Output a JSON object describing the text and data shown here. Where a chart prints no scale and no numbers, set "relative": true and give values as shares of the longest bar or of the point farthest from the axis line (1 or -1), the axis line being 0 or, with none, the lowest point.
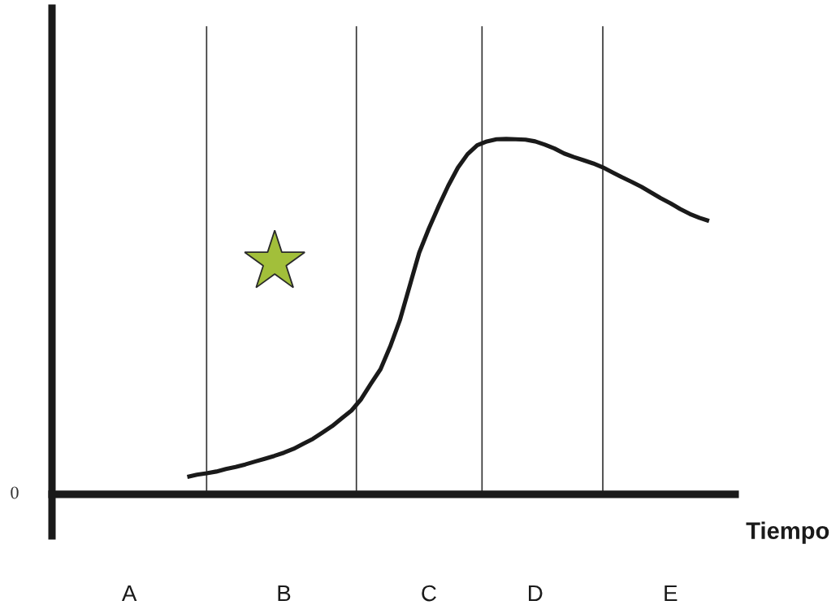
{
  "chart_data": {
    "type": "line",
    "relative": true,
    "xlabel": "Tiempo",
    "tick_labels": "x",
    "line_style": "solid",
    "categories": [
      null,
      null,
      null,
      null,
      null,
      null,
      null,
      null,
      "A",
      null,
      null,
      null,
      null,
      null,
      null,
      null,
      null,
      null,
      null,
      null,
      null,
      null,
      null,
      null,
      "B",
      null,
      null,
      null,
      null,
      null,
      null,
      null,
      null,
      null,
      null,
      null,
      null,
      null,
      null,
      "C",
      null,
      null,
      null,
      null,
      null,
      null,
      null,
      null,
      null,
      null,
      "D",
      null,
      null,
      null,
      null,
      null,
      null,
      null,
      null,
      null,
      null,
      null,
      null,
      null,
      "E",
      null,
      null,
      null,
      null,
      null,
      null
    ],
    "series": [
      {
        "color": "#1a1a1a",
        "values": [
          null,
          null,
          null,
          null,
          null,
          null,
          null,
          null,
          null,
          null,
          null,
          null,
          null,
          null,
          0.049,
          0.055,
          0.059,
          0.064,
          0.071,
          0.077,
          0.084,
          0.092,
          0.1,
          0.108,
          0.117,
          0.128,
          0.142,
          0.156,
          0.174,
          0.192,
          0.214,
          0.236,
          0.268,
          0.311,
          0.352,
          0.416,
          0.49,
          0.585,
          0.68,
          0.748,
          0.81,
          0.868,
          0.919,
          0.957,
          0.982,
          0.993,
          0.999,
          1.0,
          0.999,
          0.998,
          0.993,
          0.984,
          0.973,
          0.959,
          0.949,
          0.94,
          0.931,
          0.92,
          0.906,
          0.892,
          0.879,
          0.865,
          0.849,
          0.833,
          0.819,
          0.803,
          0.789,
          0.778,
          0.769,
          null,
          null
        ]
      }
    ],
    "annotations": [
      "0"
    ]
  }
}
